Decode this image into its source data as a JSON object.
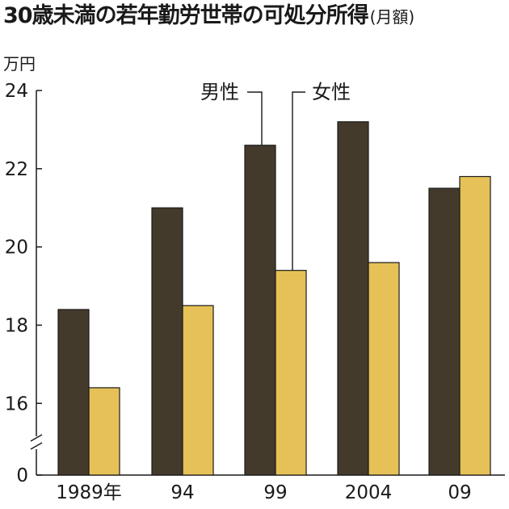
{
  "chart_data": {
    "type": "bar",
    "title": "30歳未満の若年勤労世帯の可処分所得",
    "subtitle": "(月額)",
    "ylabel": "万円",
    "categories": [
      "1989年",
      "94",
      "99",
      "2004",
      "09"
    ],
    "series": [
      {
        "name": "男性",
        "values": [
          18.4,
          21.0,
          22.6,
          23.2,
          21.5
        ],
        "color": "#433a2c"
      },
      {
        "name": "女性",
        "values": [
          16.4,
          18.5,
          19.4,
          19.6,
          21.8
        ],
        "color": "#e5c158"
      }
    ],
    "ylim": [
      15.2,
      24
    ],
    "yticks": [
      16,
      18,
      20,
      22,
      24
    ],
    "ybreak_label": "0",
    "axis_break": true,
    "grid": false,
    "legend": "callout-top"
  }
}
